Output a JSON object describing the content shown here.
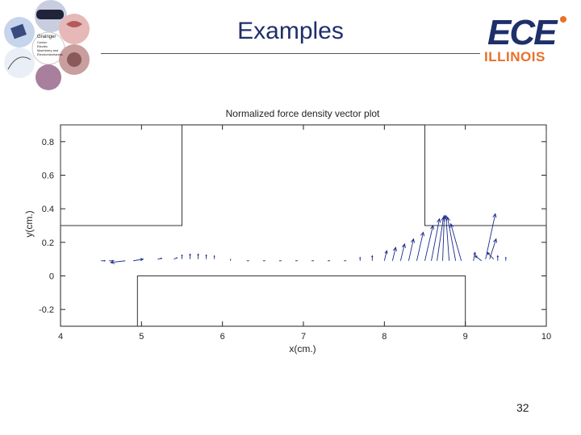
{
  "slide": {
    "title": "Examples",
    "page_number": "32"
  },
  "logo": {
    "primary_text": "ECE",
    "secondary_text": "ILLINOIS",
    "primary_color": "#1f2f6b",
    "secondary_color": "#e8702a"
  },
  "collage": {
    "caption_lines": [
      "Grainger",
      "Center",
      "Electric",
      "Machinery and",
      "Electromechanics"
    ]
  },
  "chart_data": {
    "type": "quiver",
    "title": "Normalized force density vector plot",
    "xlabel": "x(cm.)",
    "ylabel": "y(cm.)",
    "xlim": [
      4,
      10
    ],
    "ylim": [
      -0.3,
      0.9
    ],
    "xticks": [
      4,
      5,
      6,
      7,
      8,
      9,
      10
    ],
    "yticks": [
      0.8,
      0.6,
      0.4,
      0.2,
      0,
      -0.2
    ],
    "ytick_labels": [
      "0.8",
      "0.6",
      "0.4",
      "0.2",
      "0",
      "-0.2"
    ],
    "grid": false,
    "vector_color": "#1a2a8a",
    "geometry_color": "#333333",
    "geometry": [
      {
        "name": "left-stator-block",
        "x": [
          4,
          4,
          5.5,
          5.5,
          4
        ],
        "y": [
          0.9,
          0.3,
          0.3,
          0.9,
          0.9
        ]
      },
      {
        "name": "right-stator-block",
        "x": [
          8.5,
          8.5,
          10,
          10,
          8.5
        ],
        "y": [
          0.9,
          0.3,
          0.3,
          0.9,
          0.9
        ]
      },
      {
        "name": "mover-block",
        "x": [
          4.95,
          4.95,
          9.0,
          9.0
        ],
        "y": [
          -0.3,
          0.0,
          0.0,
          -0.3
        ]
      }
    ],
    "vectors": [
      {
        "x": 4.5,
        "y": 0.09,
        "u": 0.05,
        "v": 0.0
      },
      {
        "x": 4.6,
        "y": 0.09,
        "u": 0.05,
        "v": 0.0
      },
      {
        "x": 4.8,
        "y": 0.09,
        "u": -0.18,
        "v": -0.01
      },
      {
        "x": 4.9,
        "y": 0.09,
        "u": 0.12,
        "v": 0.01
      },
      {
        "x": 5.2,
        "y": 0.1,
        "u": 0.05,
        "v": 0.005
      },
      {
        "x": 5.4,
        "y": 0.1,
        "u": 0.04,
        "v": 0.008
      },
      {
        "x": 5.5,
        "y": 0.1,
        "u": 0.0,
        "v": 0.025
      },
      {
        "x": 5.6,
        "y": 0.1,
        "u": 0.0,
        "v": 0.03
      },
      {
        "x": 5.7,
        "y": 0.1,
        "u": 0.0,
        "v": 0.03
      },
      {
        "x": 5.8,
        "y": 0.1,
        "u": 0.0,
        "v": 0.025
      },
      {
        "x": 5.9,
        "y": 0.1,
        "u": 0.0,
        "v": 0.02
      },
      {
        "x": 6.1,
        "y": 0.09,
        "u": 0.0,
        "v": 0.012
      },
      {
        "x": 6.3,
        "y": 0.09,
        "u": 0.03,
        "v": 0.0
      },
      {
        "x": 6.5,
        "y": 0.09,
        "u": 0.03,
        "v": 0.0
      },
      {
        "x": 6.7,
        "y": 0.09,
        "u": 0.03,
        "v": 0.0
      },
      {
        "x": 6.9,
        "y": 0.09,
        "u": 0.03,
        "v": 0.0
      },
      {
        "x": 7.1,
        "y": 0.09,
        "u": 0.03,
        "v": 0.0
      },
      {
        "x": 7.3,
        "y": 0.09,
        "u": 0.03,
        "v": 0.0
      },
      {
        "x": 7.5,
        "y": 0.09,
        "u": 0.03,
        "v": 0.0
      },
      {
        "x": 7.7,
        "y": 0.09,
        "u": 0.0,
        "v": 0.02
      },
      {
        "x": 7.85,
        "y": 0.09,
        "u": 0.0,
        "v": 0.03
      },
      {
        "x": 8.0,
        "y": 0.09,
        "u": 0.03,
        "v": 0.06
      },
      {
        "x": 8.1,
        "y": 0.09,
        "u": 0.04,
        "v": 0.08
      },
      {
        "x": 8.2,
        "y": 0.09,
        "u": 0.05,
        "v": 0.1
      },
      {
        "x": 8.3,
        "y": 0.09,
        "u": 0.06,
        "v": 0.13
      },
      {
        "x": 8.4,
        "y": 0.09,
        "u": 0.08,
        "v": 0.17
      },
      {
        "x": 8.5,
        "y": 0.09,
        "u": 0.1,
        "v": 0.21
      },
      {
        "x": 8.58,
        "y": 0.09,
        "u": 0.1,
        "v": 0.25
      },
      {
        "x": 8.65,
        "y": 0.09,
        "u": 0.08,
        "v": 0.26
      },
      {
        "x": 8.72,
        "y": 0.09,
        "u": 0.02,
        "v": 0.27
      },
      {
        "x": 8.8,
        "y": 0.09,
        "u": -0.04,
        "v": 0.27
      },
      {
        "x": 8.88,
        "y": 0.09,
        "u": -0.1,
        "v": 0.26
      },
      {
        "x": 8.95,
        "y": 0.09,
        "u": -0.13,
        "v": 0.22
      },
      {
        "x": 9.1,
        "y": 0.09,
        "u": 0.02,
        "v": 0.05
      },
      {
        "x": 9.2,
        "y": 0.09,
        "u": -0.08,
        "v": 0.03
      },
      {
        "x": 9.25,
        "y": 0.1,
        "u": 0.12,
        "v": 0.27
      },
      {
        "x": 9.3,
        "y": 0.1,
        "u": 0.08,
        "v": 0.12
      },
      {
        "x": 9.35,
        "y": 0.1,
        "u": -0.08,
        "v": 0.04
      },
      {
        "x": 9.4,
        "y": 0.09,
        "u": 0.0,
        "v": 0.03
      },
      {
        "x": 9.5,
        "y": 0.09,
        "u": 0.0,
        "v": 0.02
      }
    ]
  }
}
